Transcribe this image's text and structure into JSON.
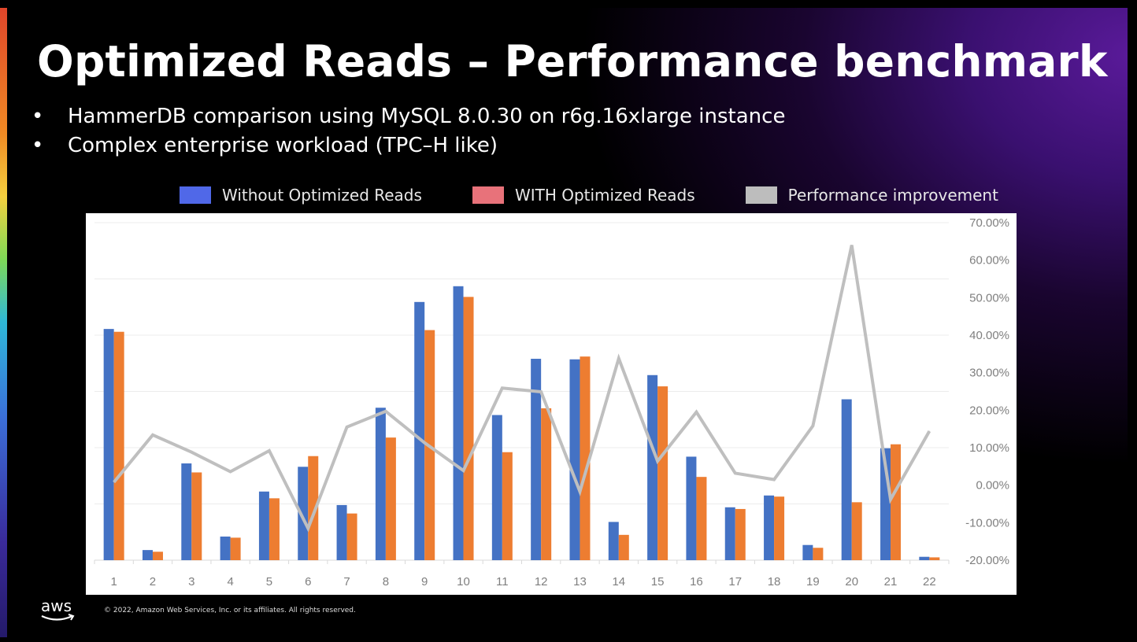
{
  "slide": {
    "title": "Optimized Reads – Performance benchmark",
    "bullets": [
      "HammerDB comparison using MySQL 8.0.30 on r6g.16xlarge instance",
      "Complex enterprise workload (TPC–H like)"
    ],
    "footer": "© 2022, Amazon Web Services, Inc. or its affiliates. All rights reserved.",
    "logo": "aws"
  },
  "chart_data": {
    "type": "bar",
    "categories": [
      "1",
      "2",
      "3",
      "4",
      "5",
      "6",
      "7",
      "8",
      "9",
      "10",
      "11",
      "12",
      "13",
      "14",
      "15",
      "16",
      "17",
      "18",
      "19",
      "20",
      "21",
      "22"
    ],
    "primary_axis": {
      "labels_shown": false,
      "ylim": [
        0,
        6
      ],
      "gridlines": 6
    },
    "series": [
      {
        "name": "Without Optimized Reads",
        "type": "bar",
        "axis": "primary",
        "color": "#4472c4",
        "legend_color": "#5068e8",
        "values": [
          4.11,
          0.18,
          1.72,
          0.42,
          1.22,
          1.66,
          0.98,
          2.71,
          4.59,
          4.87,
          2.58,
          3.58,
          3.57,
          0.68,
          3.29,
          1.84,
          0.94,
          1.15,
          0.27,
          2.86,
          1.99,
          0.06
        ]
      },
      {
        "name": "WITH Optimized Reads",
        "type": "bar",
        "axis": "primary",
        "color": "#ed7d31",
        "legend_color": "#e8727a",
        "values": [
          4.06,
          0.15,
          1.56,
          0.4,
          1.1,
          1.85,
          0.83,
          2.18,
          4.09,
          4.68,
          1.92,
          2.7,
          3.62,
          0.45,
          3.09,
          1.48,
          0.91,
          1.13,
          0.22,
          1.03,
          2.06,
          0.05
        ]
      },
      {
        "name": "Performance improvement",
        "type": "line",
        "axis": "secondary",
        "color": "#bfbfbf",
        "legend_color": "#bdbdbd",
        "values": [
          0.8,
          13.4,
          8.8,
          3.6,
          9.2,
          -11.5,
          15.5,
          19.7,
          11.3,
          3.9,
          25.9,
          24.9,
          -1.7,
          33.8,
          6.4,
          19.5,
          3.2,
          1.5,
          15.8,
          64.0,
          -3.8,
          14.4
        ]
      }
    ],
    "secondary_axis": {
      "ylim": [
        -20,
        70
      ],
      "ticks": [
        "70.00%",
        "60.00%",
        "50.00%",
        "40.00%",
        "30.00%",
        "20.00%",
        "10.00%",
        "0.00%",
        "-10.00%",
        "-20.00%"
      ],
      "position": "right"
    },
    "grid": true,
    "legend_position": "top"
  }
}
